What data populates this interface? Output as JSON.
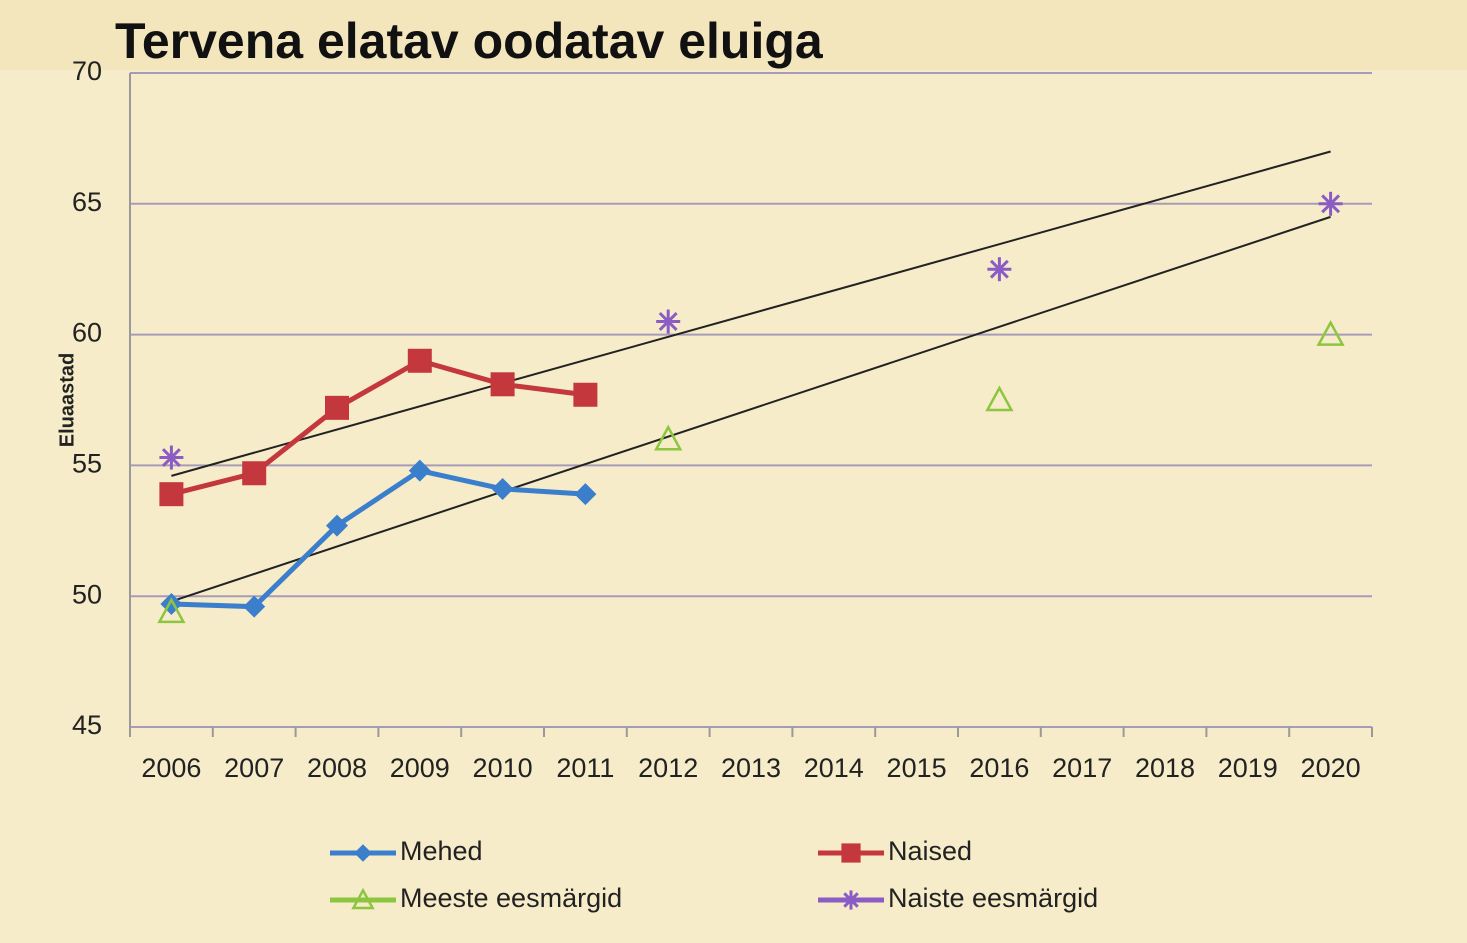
{
  "chart_data": {
    "type": "line",
    "title": "Tervena elatav oodatav eluiga",
    "y_label": "Eluaastad",
    "categories": [
      "2006",
      "2007",
      "2008",
      "2009",
      "2010",
      "2011",
      "2012",
      "2013",
      "2014",
      "2015",
      "2016",
      "2017",
      "2018",
      "2019",
      "2020"
    ],
    "ylim": [
      45,
      70
    ],
    "yticks": [
      45,
      50,
      55,
      60,
      65,
      70
    ],
    "grid": true,
    "series": [
      {
        "name": "Mehed",
        "color": "#3b7fcc",
        "marker": "diamond",
        "line": true,
        "values": [
          49.7,
          49.6,
          52.7,
          54.8,
          54.1,
          53.9,
          null,
          null,
          null,
          null,
          null,
          null,
          null,
          null,
          null
        ]
      },
      {
        "name": "Naised",
        "color": "#c4373c",
        "marker": "square",
        "line": true,
        "values": [
          53.9,
          54.7,
          57.2,
          59.0,
          58.1,
          57.7,
          null,
          null,
          null,
          null,
          null,
          null,
          null,
          null,
          null
        ]
      },
      {
        "name": "Meeste eesmärgid",
        "color": "#8cc63f",
        "marker": "triangle",
        "line": false,
        "values": [
          49.4,
          null,
          null,
          null,
          null,
          null,
          56.0,
          null,
          null,
          null,
          57.5,
          null,
          null,
          null,
          60.0
        ]
      },
      {
        "name": "Naiste eesmärgid",
        "color": "#8a5cc4",
        "marker": "star",
        "line": false,
        "values": [
          55.3,
          null,
          null,
          null,
          null,
          null,
          60.5,
          null,
          null,
          null,
          62.5,
          null,
          null,
          null,
          65.0
        ]
      }
    ],
    "trendlines": [
      {
        "color": "#222222",
        "start": 54.6,
        "end": 67.0
      },
      {
        "color": "#222222",
        "start": 49.8,
        "end": 64.5
      }
    ]
  }
}
